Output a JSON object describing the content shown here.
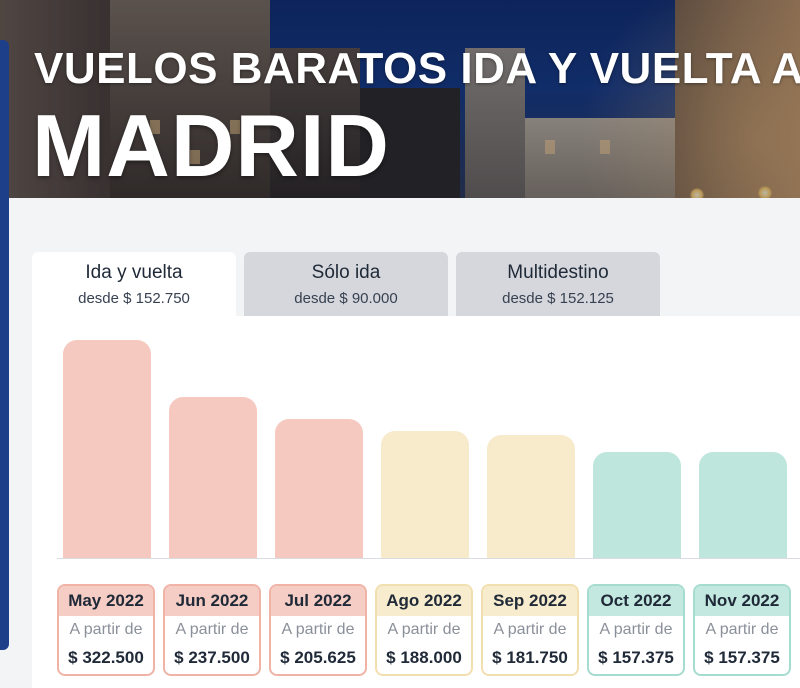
{
  "hero": {
    "title_line1": "VUELOS BARATOS IDA Y VUELTA A",
    "title_line2": "MADRID"
  },
  "tabs": [
    {
      "label": "Ida y vuelta",
      "sub": "desde $ 152.750",
      "active": true
    },
    {
      "label": "Sólo ida",
      "sub": "desde $ 90.000",
      "active": false
    },
    {
      "label": "Multidestino",
      "sub": "desde $ 152.125",
      "active": false
    }
  ],
  "colors": {
    "high": {
      "bar": "#f5c9c0",
      "border": "#f0b3a6",
      "head": "#f5cdc4"
    },
    "mid": {
      "bar": "#f7ebcc",
      "border": "#f2dfb0",
      "head": "#f8ecce"
    },
    "low": {
      "bar": "#bfe6dd",
      "border": "#a6dccf",
      "head": "#c2e8df"
    }
  },
  "chart_data": {
    "type": "bar",
    "categories": [
      "May 2022",
      "Jun 2022",
      "Jul 2022",
      "Ago 2022",
      "Sep 2022",
      "Oct 2022",
      "Nov 2022"
    ],
    "values": [
      322500,
      237500,
      205625,
      188000,
      181750,
      157375,
      157375
    ],
    "tiers": [
      "high",
      "high",
      "high",
      "mid",
      "mid",
      "low",
      "low"
    ],
    "from_label": "A partir de",
    "price_labels": [
      "$ 322.500",
      "$ 237.500",
      "$ 205.625",
      "$ 188.000",
      "$ 181.750",
      "$ 157.375",
      "$ 157.375"
    ]
  }
}
